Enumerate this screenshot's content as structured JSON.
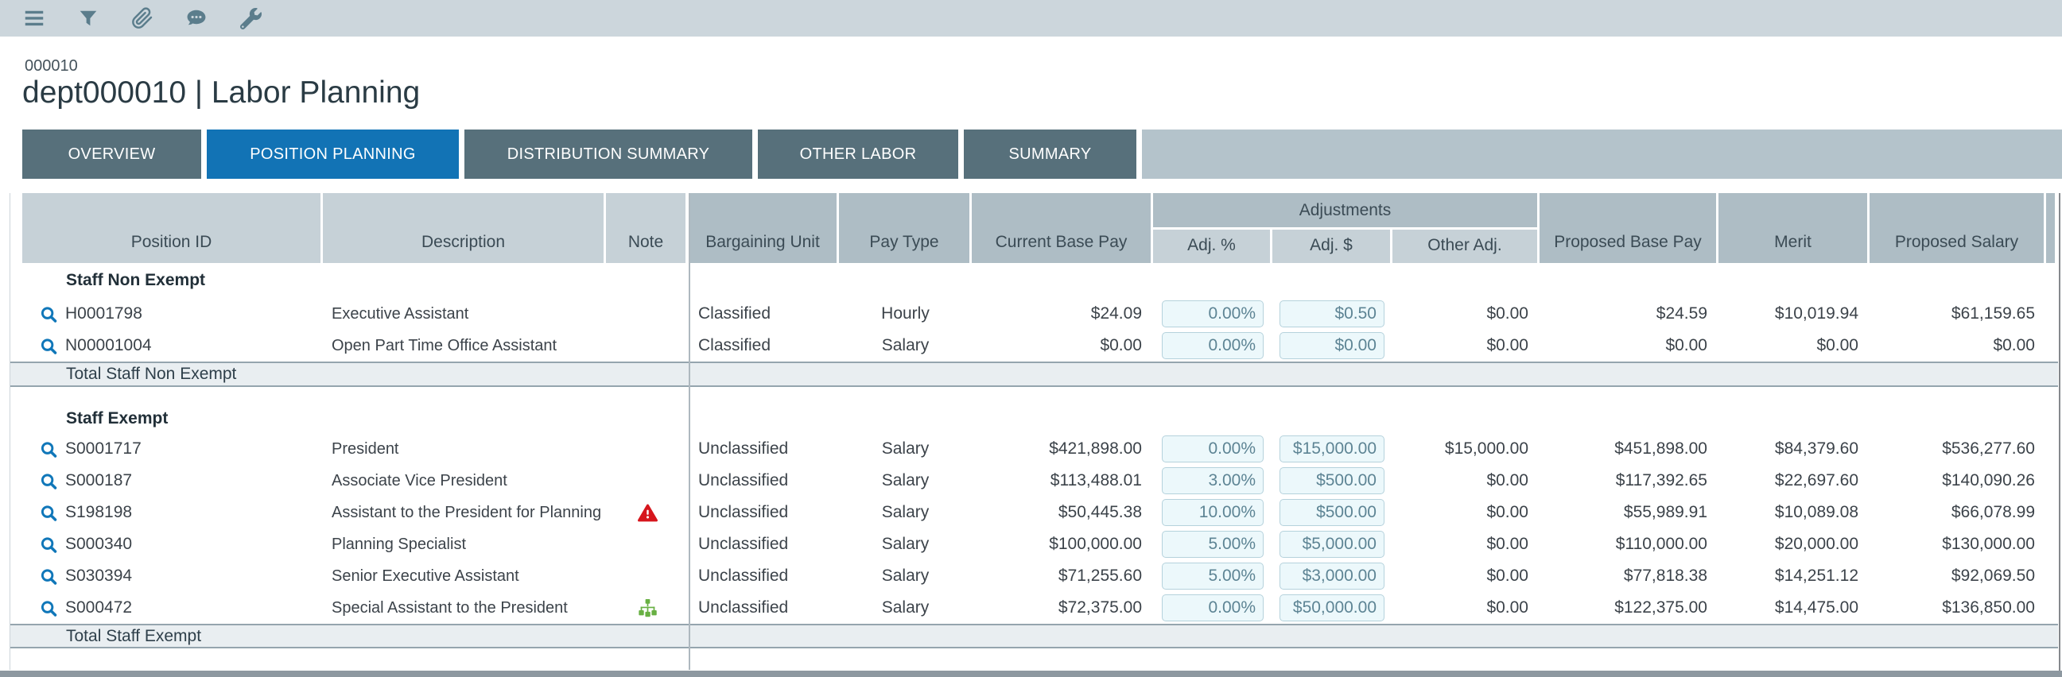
{
  "toolbar": {
    "icons": [
      {
        "name": "menu"
      },
      {
        "name": "filter"
      },
      {
        "name": "attachment"
      },
      {
        "name": "comments"
      },
      {
        "name": "wrench"
      }
    ]
  },
  "header": {
    "dept_code": "000010",
    "title": "dept000010 | Labor Planning"
  },
  "tabs": [
    {
      "label": "OVERVIEW",
      "active": false
    },
    {
      "label": "POSITION PLANNING",
      "active": true
    },
    {
      "label": "DISTRIBUTION SUMMARY",
      "active": false
    },
    {
      "label": "OTHER LABOR",
      "active": false
    },
    {
      "label": "SUMMARY",
      "active": false
    }
  ],
  "table": {
    "adjustments_label": "Adjustments",
    "columns": [
      "Position ID",
      "Description",
      "Note",
      "Bargaining Unit",
      "Pay Type",
      "Current Base Pay",
      "Adj. %",
      "Adj. $",
      "Other Adj.",
      "Proposed Base Pay",
      "Merit",
      "Proposed Salary"
    ],
    "groups": [
      {
        "label": "Staff Non Exempt",
        "total_label": "Total Staff Non Exempt",
        "rows": [
          {
            "id": "H0001798",
            "description": "Executive Assistant",
            "note": "",
            "bargaining_unit": "Classified",
            "pay_type": "Hourly",
            "current_base_pay": "$24.09",
            "adj_pct": "0.00%",
            "adj_amt": "$0.50",
            "other_adj": "$0.00",
            "proposed_base_pay": "$24.59",
            "merit": "$10,019.94",
            "proposed_salary": "$61,159.65"
          },
          {
            "id": "N00001004",
            "description": "Open Part Time Office Assistant",
            "note": "",
            "bargaining_unit": "Classified",
            "pay_type": "Salary",
            "current_base_pay": "$0.00",
            "adj_pct": "0.00%",
            "adj_amt": "$0.00",
            "other_adj": "$0.00",
            "proposed_base_pay": "$0.00",
            "merit": "$0.00",
            "proposed_salary": "$0.00"
          }
        ]
      },
      {
        "label": "Staff Exempt",
        "total_label": "Total Staff Exempt",
        "rows": [
          {
            "id": "S0001717",
            "description": "President",
            "note": "",
            "bargaining_unit": "Unclassified",
            "pay_type": "Salary",
            "current_base_pay": "$421,898.00",
            "adj_pct": "0.00%",
            "adj_amt": "$15,000.00",
            "other_adj": "$15,000.00",
            "proposed_base_pay": "$451,898.00",
            "merit": "$84,379.60",
            "proposed_salary": "$536,277.60"
          },
          {
            "id": "S000187",
            "description": "Associate Vice President",
            "note": "",
            "bargaining_unit": "Unclassified",
            "pay_type": "Salary",
            "current_base_pay": "$113,488.01",
            "adj_pct": "3.00%",
            "adj_amt": "$500.00",
            "other_adj": "$0.00",
            "proposed_base_pay": "$117,392.65",
            "merit": "$22,697.60",
            "proposed_salary": "$140,090.26"
          },
          {
            "id": "S198198",
            "description": "Assistant to the President for Planning",
            "note": "warning",
            "bargaining_unit": "Unclassified",
            "pay_type": "Salary",
            "current_base_pay": "$50,445.38",
            "adj_pct": "10.00%",
            "adj_amt": "$500.00",
            "other_adj": "$0.00",
            "proposed_base_pay": "$55,989.91",
            "merit": "$10,089.08",
            "proposed_salary": "$66,078.99"
          },
          {
            "id": "S000340",
            "description": "Planning Specialist",
            "note": "",
            "bargaining_unit": "Unclassified",
            "pay_type": "Salary",
            "current_base_pay": "$100,000.00",
            "adj_pct": "5.00%",
            "adj_amt": "$5,000.00",
            "other_adj": "$0.00",
            "proposed_base_pay": "$110,000.00",
            "merit": "$20,000.00",
            "proposed_salary": "$130,000.00"
          },
          {
            "id": "S030394",
            "description": "Senior Executive Assistant",
            "note": "",
            "bargaining_unit": "Unclassified",
            "pay_type": "Salary",
            "current_base_pay": "$71,255.60",
            "adj_pct": "5.00%",
            "adj_amt": "$3,000.00",
            "other_adj": "$0.00",
            "proposed_base_pay": "$77,818.38",
            "merit": "$14,251.12",
            "proposed_salary": "$92,069.50"
          },
          {
            "id": "S000472",
            "description": "Special Assistant to the President",
            "note": "org",
            "bargaining_unit": "Unclassified",
            "pay_type": "Salary",
            "current_base_pay": "$72,375.00",
            "adj_pct": "0.00%",
            "adj_amt": "$50,000.00",
            "other_adj": "$0.00",
            "proposed_base_pay": "$122,375.00",
            "merit": "$14,475.00",
            "proposed_salary": "$136,850.00"
          }
        ]
      }
    ]
  },
  "colors": {
    "toolbar_bg": "#ccd6dc",
    "tab_inactive": "#57707b",
    "tab_active": "#1273b5",
    "header_light": "#c6d1d7",
    "header_dark": "#aebdc5",
    "total_row_bg": "#e9eef1",
    "input_bg": "#ecf8fb",
    "input_border": "#b5d2dc",
    "warning_icon": "#d6161d",
    "org_icon": "#68b043",
    "magnifier_icon": "#1077b9"
  }
}
